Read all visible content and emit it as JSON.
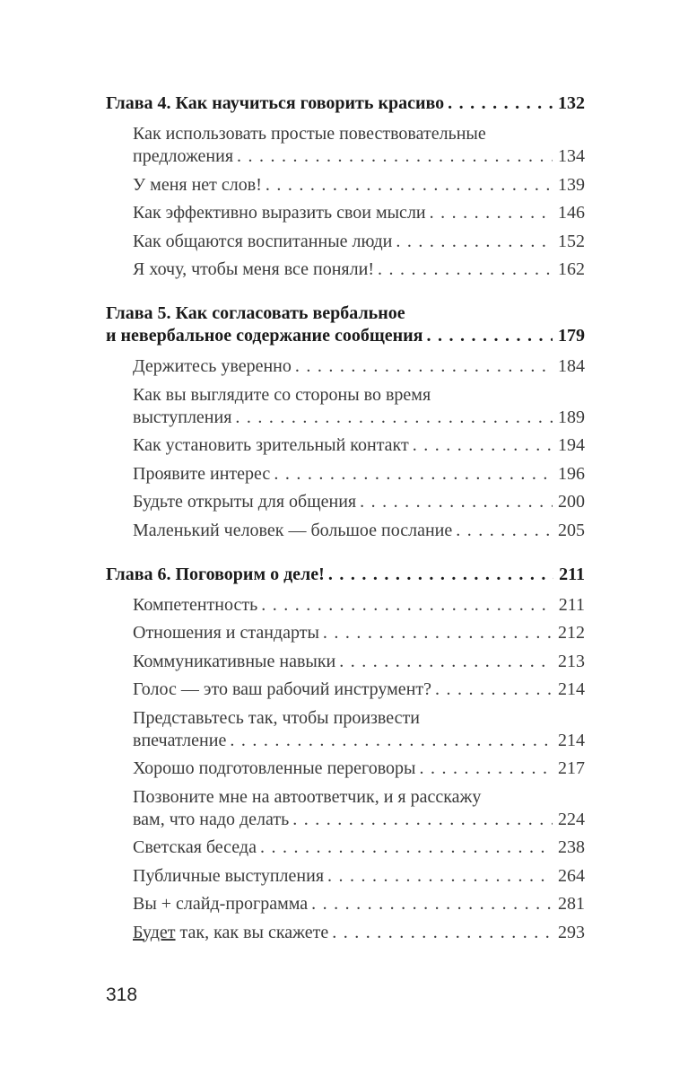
{
  "toc": [
    {
      "type": "chapter",
      "lines": [
        "Глава 4. Как научиться говорить красиво"
      ],
      "page": "132"
    },
    {
      "type": "entry",
      "lines": [
        "Как использовать простые повествовательные",
        "предложения"
      ],
      "page": "134"
    },
    {
      "type": "entry",
      "lines": [
        "У меня нет слов!"
      ],
      "page": "139"
    },
    {
      "type": "entry",
      "lines": [
        "Как эффективно выразить свои мысли"
      ],
      "page": "146"
    },
    {
      "type": "entry",
      "lines": [
        "Как общаются воспитанные люди"
      ],
      "page": "152"
    },
    {
      "type": "entry",
      "lines": [
        "Я хочу, чтобы меня все поняли!"
      ],
      "page": "162"
    },
    {
      "type": "chapter",
      "lines": [
        "Глава 5. Как согласовать вербальное",
        "и невербальное содержание сообщения"
      ],
      "page": "179"
    },
    {
      "type": "entry",
      "lines": [
        "Держитесь уверенно"
      ],
      "page": "184"
    },
    {
      "type": "entry",
      "lines": [
        "Как вы выглядите со стороны во время",
        "выступления"
      ],
      "page": "189"
    },
    {
      "type": "entry",
      "lines": [
        "Как установить зрительный контакт"
      ],
      "page": "194"
    },
    {
      "type": "entry",
      "lines": [
        "Проявите интерес"
      ],
      "page": "196"
    },
    {
      "type": "entry",
      "lines": [
        "Будьте открыты для общения"
      ],
      "page": "200"
    },
    {
      "type": "entry",
      "lines": [
        "Маленький человек — большое послание"
      ],
      "page": "205"
    },
    {
      "type": "chapter",
      "lines": [
        "Глава 6. Поговорим о деле!"
      ],
      "page": "211"
    },
    {
      "type": "entry",
      "lines": [
        "Компетентность"
      ],
      "page": "211"
    },
    {
      "type": "entry",
      "lines": [
        "Отношения и стандарты"
      ],
      "page": "212"
    },
    {
      "type": "entry",
      "lines": [
        "Коммуникативные навыки"
      ],
      "page": "213"
    },
    {
      "type": "entry",
      "lines": [
        "Голос — это ваш рабочий инструмент?"
      ],
      "page": "214"
    },
    {
      "type": "entry",
      "lines": [
        "Представьтесь так, чтобы произвести",
        "впечатление"
      ],
      "page": "214"
    },
    {
      "type": "entry",
      "lines": [
        "Хорошо подготовленные переговоры"
      ],
      "page": "217"
    },
    {
      "type": "entry",
      "lines": [
        "Позвоните мне на автоответчик, и я расскажу",
        "вам, что надо делать"
      ],
      "page": "224"
    },
    {
      "type": "entry",
      "lines": [
        "Светская беседа"
      ],
      "page": "238"
    },
    {
      "type": "entry",
      "lines": [
        "Публичные выступления"
      ],
      "page": "264"
    },
    {
      "type": "entry",
      "lines": [
        "Вы + слайд-программа"
      ],
      "page": "281"
    },
    {
      "type": "entry",
      "lines": [
        "Будет так, как вы скажете"
      ],
      "page": "293",
      "underlined_word": "Будет"
    }
  ],
  "page_number": "318"
}
